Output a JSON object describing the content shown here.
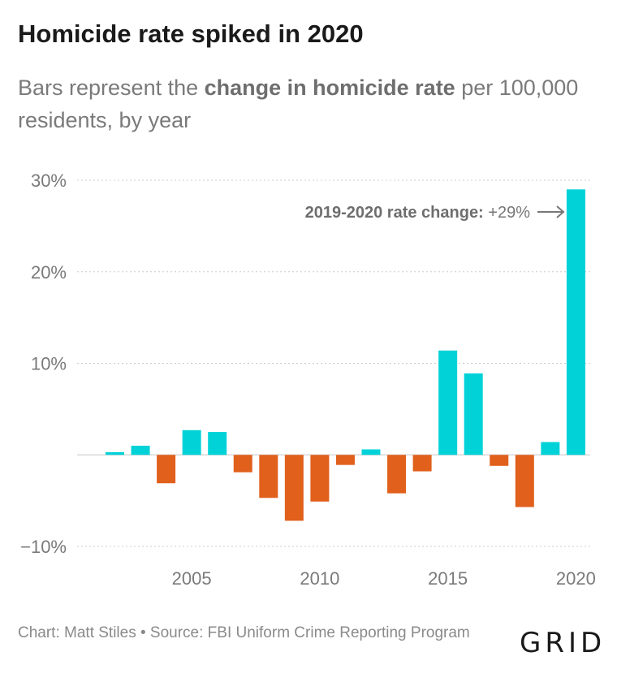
{
  "title": "Homicide rate spiked in 2020",
  "subtitle": {
    "pre": "Bars represent the ",
    "bold": "change in homicide rate",
    "post": " per 100,000 residents, by year"
  },
  "annotation": {
    "bold": "2019-2020 rate change:",
    "value": " +29%"
  },
  "footer": "Chart: Matt Stiles • Source: FBI Uniform Crime Reporting Program",
  "logo": "GRID",
  "colors": {
    "positive": "#00d2d8",
    "negative": "#e0601c",
    "grid": "#cccccc",
    "axis_text": "#7a7a7a"
  },
  "chart_data": {
    "type": "bar",
    "x": [
      2002,
      2003,
      2004,
      2005,
      2006,
      2007,
      2008,
      2009,
      2010,
      2011,
      2012,
      2013,
      2014,
      2015,
      2016,
      2017,
      2018,
      2019,
      2020
    ],
    "values": [
      0.3,
      1.0,
      -3.1,
      2.7,
      2.5,
      -1.9,
      -4.7,
      -7.2,
      -5.1,
      -1.1,
      0.6,
      -4.2,
      -1.8,
      11.4,
      8.9,
      -1.2,
      -5.7,
      1.4,
      29.0
    ],
    "ylim": [
      -10,
      30
    ],
    "yticks": [
      30,
      20,
      10,
      -10
    ],
    "ytick_labels": [
      "30%",
      "20%",
      "10%",
      "−10%"
    ],
    "xticks": [
      2005,
      2010,
      2015,
      2020
    ],
    "xtick_labels": [
      "2005",
      "2010",
      "2015",
      "2020"
    ],
    "grid": true,
    "xlabel": "",
    "ylabel": ""
  }
}
